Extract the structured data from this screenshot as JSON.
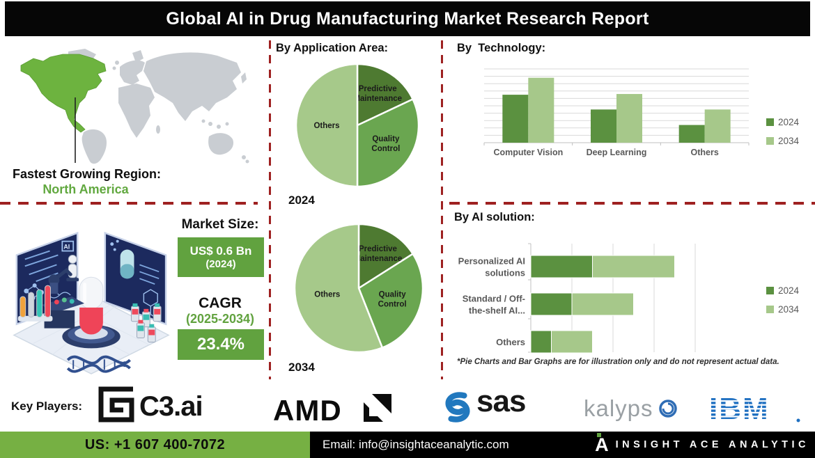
{
  "header": {
    "title": "Global AI in Drug Manufacturing Market Research Report"
  },
  "map_section": {
    "caption_label": "Fastest Growing Region:",
    "caption_value": "North America",
    "highlight_color": "#6db33f",
    "land_color": "#c9cdd2"
  },
  "market_section": {
    "market_size_label": "Market Size:",
    "market_size_value": "US$ 0.6 Bn",
    "market_size_year": "(2024)",
    "cagr_label": "CAGR",
    "cagr_period": "(2025-2034)",
    "cagr_value": "23.4%",
    "box_color": "#61a23f"
  },
  "application_section": {
    "title": "By Application Area:",
    "pie1_year": "2024",
    "pie2_year": "2034"
  },
  "technology_section": {
    "title": "By  Technology:"
  },
  "solution_section": {
    "title": "By AI solution:",
    "footnote": "*Pie Charts and Bar Graphs are for illustration only and do not represent actual data."
  },
  "key_players": {
    "label": "Key Players:",
    "companies": [
      "C3.ai",
      "AMD",
      "SAS",
      "Kalypso",
      "IBM"
    ],
    "logos": {
      "c3_text": "C3.ai",
      "amd_text": "AMD",
      "sas_text": "sas",
      "kalypso_text": "kalyps",
      "ibm_text": "IBM"
    }
  },
  "footer": {
    "phone": "US: +1 607 400-7072",
    "email": "Email: info@insightaceanalytic.com",
    "brand": "INSIGHT ACE ANALYTIC",
    "green": "#76b043"
  },
  "chart_data": [
    {
      "id": "pie2024",
      "type": "pie",
      "title": "2024",
      "labels": [
        "Predictive Maintenance",
        "Quality Control",
        "Others"
      ],
      "values": [
        18,
        32,
        50
      ],
      "colors": [
        "#4e7a31",
        "#6aa650",
        "#a6c98a"
      ],
      "start_angle_deg": 0,
      "direction": "clockwise",
      "note": "illustrative only"
    },
    {
      "id": "pie2034",
      "type": "pie",
      "title": "2034",
      "labels": [
        "Predictive Maintenance",
        "Quality Control",
        "Others"
      ],
      "values": [
        16,
        28,
        56
      ],
      "colors": [
        "#4e7a31",
        "#6aa650",
        "#a6c98a"
      ],
      "start_angle_deg": 0,
      "direction": "clockwise",
      "note": "illustrative only"
    },
    {
      "id": "tech",
      "type": "bar",
      "title": "By  Technology:",
      "categories": [
        "Computer Vision",
        "Deep Learning",
        "Others"
      ],
      "series": [
        {
          "name": "2024",
          "color": "#5b9140",
          "values": [
            65,
            45,
            24
          ]
        },
        {
          "name": "2034",
          "color": "#a6c88a",
          "values": [
            88,
            66,
            45
          ]
        }
      ],
      "ylim": [
        0,
        100
      ],
      "grid": true,
      "legend_position": "right",
      "note": "illustrative only"
    },
    {
      "id": "solution",
      "type": "stacked-hbar",
      "title": "By AI solution:",
      "categories": [
        "Personalized AI solutions",
        "Standard / Off-the-shelf AI...",
        "Others"
      ],
      "category_lines": [
        [
          "Personalized AI",
          "solutions"
        ],
        [
          "Standard / Off-",
          "the-shelf AI..."
        ],
        [
          "Others"
        ]
      ],
      "series": [
        {
          "name": "2024",
          "color": "#5b9140",
          "values": [
            1.5,
            1.0,
            0.5
          ]
        },
        {
          "name": "2034",
          "color": "#a6c88a",
          "values": [
            2.0,
            1.5,
            1.0
          ]
        }
      ],
      "xlim": [
        0,
        4
      ],
      "grid": true,
      "legend_position": "right",
      "note": "illustrative only"
    }
  ]
}
